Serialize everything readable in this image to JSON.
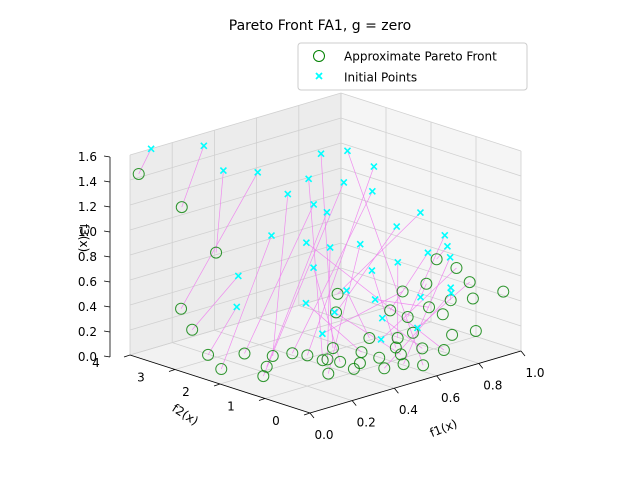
{
  "chart_data": {
    "type": "scatter3d",
    "title": "Pareto Front FA1, g = zero",
    "xlabel": "f1(x)",
    "ylabel": "f2(x)",
    "zlabel": "f3(x)",
    "xlim": [
      0,
      1
    ],
    "ylim": [
      0,
      4
    ],
    "zlim": [
      0,
      1.6
    ],
    "xticks": [
      "0.0",
      "0.2",
      "0.4",
      "0.6",
      "0.8",
      "1.0"
    ],
    "yticks": [
      "0",
      "1",
      "2",
      "3",
      "4"
    ],
    "zticks": [
      "0.0",
      "0.2",
      "0.4",
      "0.6",
      "0.8",
      "1.0",
      "1.2",
      "1.4",
      "1.6"
    ],
    "grid": true,
    "legend_position": "top-right",
    "connector_color": "#ee82ee",
    "series": [
      {
        "name": "Approximate Pareto Front",
        "marker": "open-circle",
        "color": "#008000",
        "points": [
          [
            0.02,
            3.9,
            1.45
          ],
          [
            0.16,
            3.6,
            1.15
          ],
          [
            0.28,
            3.4,
            0.75
          ],
          [
            0.05,
            3.1,
            0.45
          ],
          [
            0.06,
            2.9,
            0.3
          ],
          [
            0.05,
            2.5,
            0.15
          ],
          [
            0.07,
            2.3,
            0.05
          ],
          [
            0.18,
            2.3,
            0.12
          ],
          [
            0.2,
            1.9,
            0.05
          ],
          [
            0.25,
            2.0,
            0.1
          ],
          [
            0.12,
            1.6,
            0.05
          ],
          [
            0.3,
            1.8,
            0.12
          ],
          [
            0.35,
            1.7,
            0.09
          ],
          [
            0.38,
            1.5,
            0.06
          ],
          [
            0.45,
            1.6,
            0.11
          ],
          [
            0.42,
            1.3,
            0.05
          ],
          [
            0.36,
            1.3,
            0.1
          ],
          [
            0.3,
            1.0,
            0.05
          ],
          [
            0.55,
            2.0,
            0.3
          ],
          [
            0.6,
            2.2,
            0.4
          ],
          [
            0.5,
            1.2,
            0.1
          ],
          [
            0.58,
            1.4,
            0.15
          ],
          [
            0.62,
            1.0,
            0.1
          ],
          [
            0.65,
            1.1,
            0.15
          ],
          [
            0.7,
            1.5,
            0.3
          ],
          [
            0.74,
            1.3,
            0.25
          ],
          [
            0.78,
            1.6,
            0.4
          ],
          [
            0.82,
            1.2,
            0.3
          ],
          [
            0.85,
            1.4,
            0.45
          ],
          [
            0.88,
            1.0,
            0.35
          ],
          [
            0.92,
            1.5,
            0.6
          ],
          [
            0.95,
            1.2,
            0.55
          ],
          [
            0.97,
            1.0,
            0.45
          ],
          [
            0.48,
            0.6,
            0.05
          ],
          [
            0.55,
            0.5,
            0.06
          ],
          [
            0.58,
            0.7,
            0.1
          ],
          [
            0.66,
            0.6,
            0.12
          ],
          [
            0.72,
            0.4,
            0.1
          ],
          [
            0.6,
            0.3,
            0.05
          ],
          [
            0.78,
            0.5,
            0.18
          ],
          [
            0.85,
            0.3,
            0.2
          ],
          [
            0.4,
            0.9,
            0.05
          ],
          [
            0.8,
            0.8,
            0.3
          ],
          [
            0.68,
            0.9,
            0.2
          ],
          [
            0.52,
            0.9,
            0.08
          ],
          [
            0.45,
            1.0,
            0.06
          ],
          [
            0.98,
            0.3,
            0.45
          ],
          [
            0.9,
            0.6,
            0.4
          ]
        ]
      },
      {
        "name": "Initial Points",
        "marker": "x",
        "color": "#00ffff",
        "points": [
          [
            0.1,
            4.0,
            1.6
          ],
          [
            0.35,
            4.0,
            1.5
          ],
          [
            0.4,
            3.8,
            1.3
          ],
          [
            0.52,
            3.6,
            1.25
          ],
          [
            0.3,
            3.0,
            0.6
          ],
          [
            0.25,
            2.8,
            0.4
          ],
          [
            0.5,
            3.2,
            0.8
          ],
          [
            0.7,
            3.2,
            0.95
          ],
          [
            0.72,
            3.0,
            0.9
          ],
          [
            0.62,
            3.4,
            1.05
          ],
          [
            0.8,
            3.0,
            1.1
          ],
          [
            0.85,
            2.6,
            1.05
          ],
          [
            0.9,
            2.8,
            1.2
          ],
          [
            0.74,
            3.5,
            1.1
          ],
          [
            0.82,
            3.6,
            1.25
          ],
          [
            0.55,
            2.5,
            0.6
          ],
          [
            0.65,
            2.6,
            0.7
          ],
          [
            0.75,
            2.4,
            0.7
          ],
          [
            0.88,
            2.2,
            0.8
          ],
          [
            0.95,
            2.0,
            0.9
          ],
          [
            0.45,
            2.2,
            0.4
          ],
          [
            0.6,
            2.0,
            0.45
          ],
          [
            0.72,
            2.0,
            0.55
          ],
          [
            0.8,
            1.8,
            0.6
          ],
          [
            0.9,
            1.6,
            0.65
          ],
          [
            0.98,
            1.6,
            0.75
          ],
          [
            0.4,
            1.6,
            0.25
          ],
          [
            0.65,
            1.6,
            0.4
          ],
          [
            0.78,
            1.2,
            0.4
          ],
          [
            0.88,
            1.0,
            0.45
          ],
          [
            0.95,
            1.4,
            0.7
          ],
          [
            0.55,
            1.0,
            0.2
          ],
          [
            0.68,
            0.8,
            0.25
          ],
          [
            0.84,
            0.8,
            0.45
          ],
          [
            0.92,
            1.2,
            0.65
          ],
          [
            0.5,
            1.8,
            0.35
          ],
          [
            0.62,
            1.3,
            0.3
          ],
          [
            0.58,
            2.8,
            0.75
          ],
          [
            0.86,
            3.2,
            1.3
          ]
        ]
      }
    ]
  }
}
